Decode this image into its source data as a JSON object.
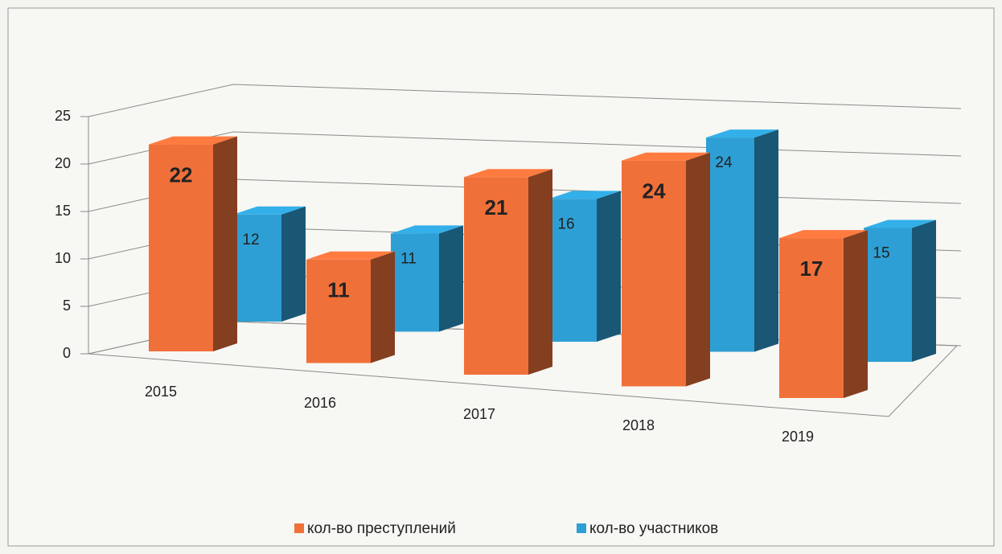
{
  "chart_data": {
    "type": "bar3d",
    "categories": [
      "2015",
      "2016",
      "2017",
      "2018",
      "2019"
    ],
    "series": [
      {
        "name": "кол-во преступлений",
        "color": "#f0703a",
        "values": [
          22,
          11,
          21,
          24,
          17
        ]
      },
      {
        "name": "кол-во участников",
        "color": "#2e9fd4",
        "values": [
          12,
          11,
          16,
          24,
          15
        ]
      }
    ],
    "ylim": [
      0,
      25
    ],
    "yticks": [
      0,
      5,
      10,
      15,
      20,
      25
    ],
    "grid": true,
    "legend": "bottom"
  }
}
